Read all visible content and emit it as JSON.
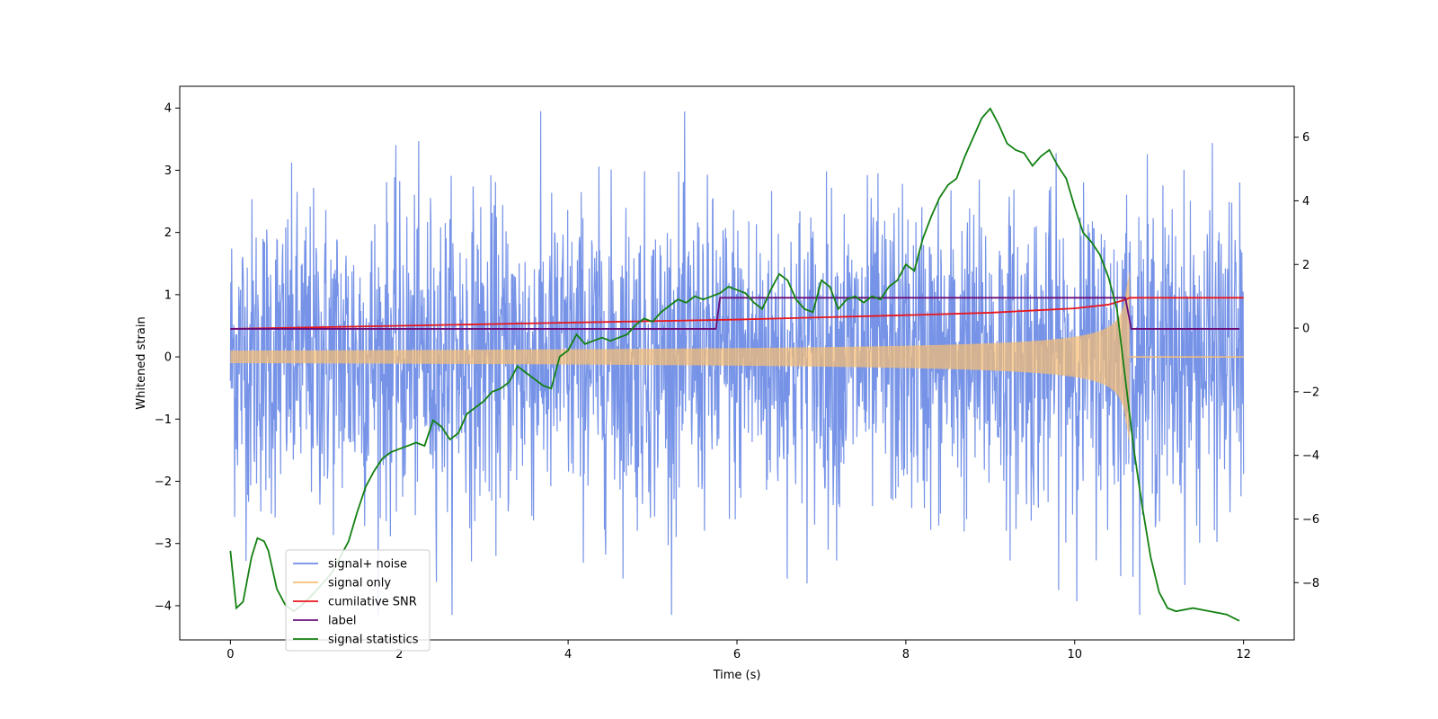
{
  "chart_data": {
    "type": "line",
    "title": "",
    "xlabel": "Time (s)",
    "ylabel": "Whitened strain",
    "xlim": [
      -0.6,
      12.6
    ],
    "ylim": [
      -4.55,
      4.35
    ],
    "y2lim": [
      -9.8,
      7.6
    ],
    "x_ticks": [
      0,
      2,
      4,
      6,
      8,
      10,
      12
    ],
    "y_ticks": [
      -4,
      -3,
      -2,
      -1,
      0,
      1,
      2,
      3,
      4
    ],
    "y2_ticks": [
      -8,
      -6,
      -4,
      -2,
      0,
      2,
      4,
      6
    ],
    "legend_position": "lower-left",
    "colors": {
      "signal_noise": "#6f8de6",
      "signal_only": "#f7be74",
      "snr": "#e8161d",
      "label": "#6a0d78",
      "stats": "#138012"
    },
    "series": [
      {
        "name": "signal+ noise",
        "axis": "left",
        "description_values": {
          "duration_s": 12,
          "envelope_core": 1.35,
          "max": 3.95,
          "min": -4.15
        }
      },
      {
        "name": "signal only",
        "axis": "left",
        "amplitude_start": 0.1,
        "amplitude_peak": 1.6,
        "merger_time": 10.65
      },
      {
        "name": "cumilative SNR",
        "axis": "left",
        "x": [
          0,
          2,
          4,
          6,
          8,
          9,
          10,
          10.4,
          10.6,
          10.65,
          12
        ],
        "values": [
          0.45,
          0.5,
          0.55,
          0.6,
          0.67,
          0.71,
          0.78,
          0.84,
          0.92,
          0.95,
          0.95
        ]
      },
      {
        "name": "label",
        "axis": "left",
        "x": [
          0,
          5.75,
          5.8,
          10.6,
          10.67,
          11.95
        ],
        "values": [
          0.45,
          0.45,
          0.95,
          0.95,
          0.45,
          0.45
        ]
      },
      {
        "name": "signal statistics",
        "axis": "right",
        "x": [
          0,
          0.07,
          0.15,
          0.25,
          0.32,
          0.4,
          0.45,
          0.55,
          0.65,
          0.75,
          0.85,
          1.0,
          1.2,
          1.3,
          1.4,
          1.5,
          1.6,
          1.7,
          1.8,
          1.9,
          2.0,
          2.1,
          2.2,
          2.3,
          2.4,
          2.5,
          2.6,
          2.7,
          2.8,
          2.9,
          3.0,
          3.1,
          3.2,
          3.3,
          3.4,
          3.5,
          3.6,
          3.7,
          3.8,
          3.9,
          4.0,
          4.1,
          4.2,
          4.3,
          4.4,
          4.5,
          4.6,
          4.7,
          4.8,
          4.9,
          5.0,
          5.1,
          5.2,
          5.3,
          5.4,
          5.5,
          5.6,
          5.7,
          5.8,
          5.9,
          6.0,
          6.1,
          6.2,
          6.3,
          6.4,
          6.5,
          6.6,
          6.7,
          6.8,
          6.9,
          7.0,
          7.1,
          7.2,
          7.3,
          7.4,
          7.5,
          7.6,
          7.7,
          7.8,
          7.9,
          8.0,
          8.1,
          8.2,
          8.3,
          8.4,
          8.5,
          8.6,
          8.7,
          8.8,
          8.9,
          9.0,
          9.1,
          9.2,
          9.3,
          9.4,
          9.5,
          9.6,
          9.7,
          9.8,
          9.9,
          10.0,
          10.1,
          10.2,
          10.3,
          10.4,
          10.5,
          10.6,
          10.7,
          10.8,
          10.9,
          11.0,
          11.1,
          11.2,
          11.4,
          11.6,
          11.8,
          11.95
        ],
        "values": [
          -7.0,
          -8.8,
          -8.6,
          -7.2,
          -6.6,
          -6.7,
          -7.0,
          -8.2,
          -8.7,
          -8.9,
          -8.7,
          -8.3,
          -7.7,
          -7.2,
          -6.7,
          -5.8,
          -5.0,
          -4.5,
          -4.1,
          -3.9,
          -3.8,
          -3.7,
          -3.6,
          -3.7,
          -2.9,
          -3.1,
          -3.5,
          -3.3,
          -2.7,
          -2.5,
          -2.3,
          -2.0,
          -1.9,
          -1.7,
          -1.2,
          -1.4,
          -1.6,
          -1.8,
          -1.9,
          -0.9,
          -0.7,
          -0.2,
          -0.5,
          -0.4,
          -0.3,
          -0.4,
          -0.3,
          -0.2,
          0.1,
          0.3,
          0.2,
          0.5,
          0.7,
          0.9,
          0.8,
          1.0,
          0.9,
          1.0,
          1.1,
          1.3,
          1.2,
          1.1,
          0.8,
          0.6,
          1.2,
          1.7,
          1.5,
          0.9,
          0.6,
          0.5,
          1.5,
          1.3,
          0.6,
          0.9,
          1.0,
          0.8,
          1.0,
          0.9,
          1.3,
          1.5,
          2.0,
          1.8,
          2.8,
          3.5,
          4.1,
          4.5,
          4.7,
          5.4,
          6.0,
          6.6,
          6.9,
          6.4,
          5.8,
          5.6,
          5.5,
          5.1,
          5.4,
          5.6,
          5.1,
          4.7,
          3.8,
          3.0,
          2.7,
          2.3,
          1.6,
          0.6,
          -1.6,
          -3.8,
          -5.6,
          -7.2,
          -8.3,
          -8.8,
          -8.9,
          -8.8,
          -8.9,
          -9.0,
          -9.2
        ]
      }
    ]
  }
}
